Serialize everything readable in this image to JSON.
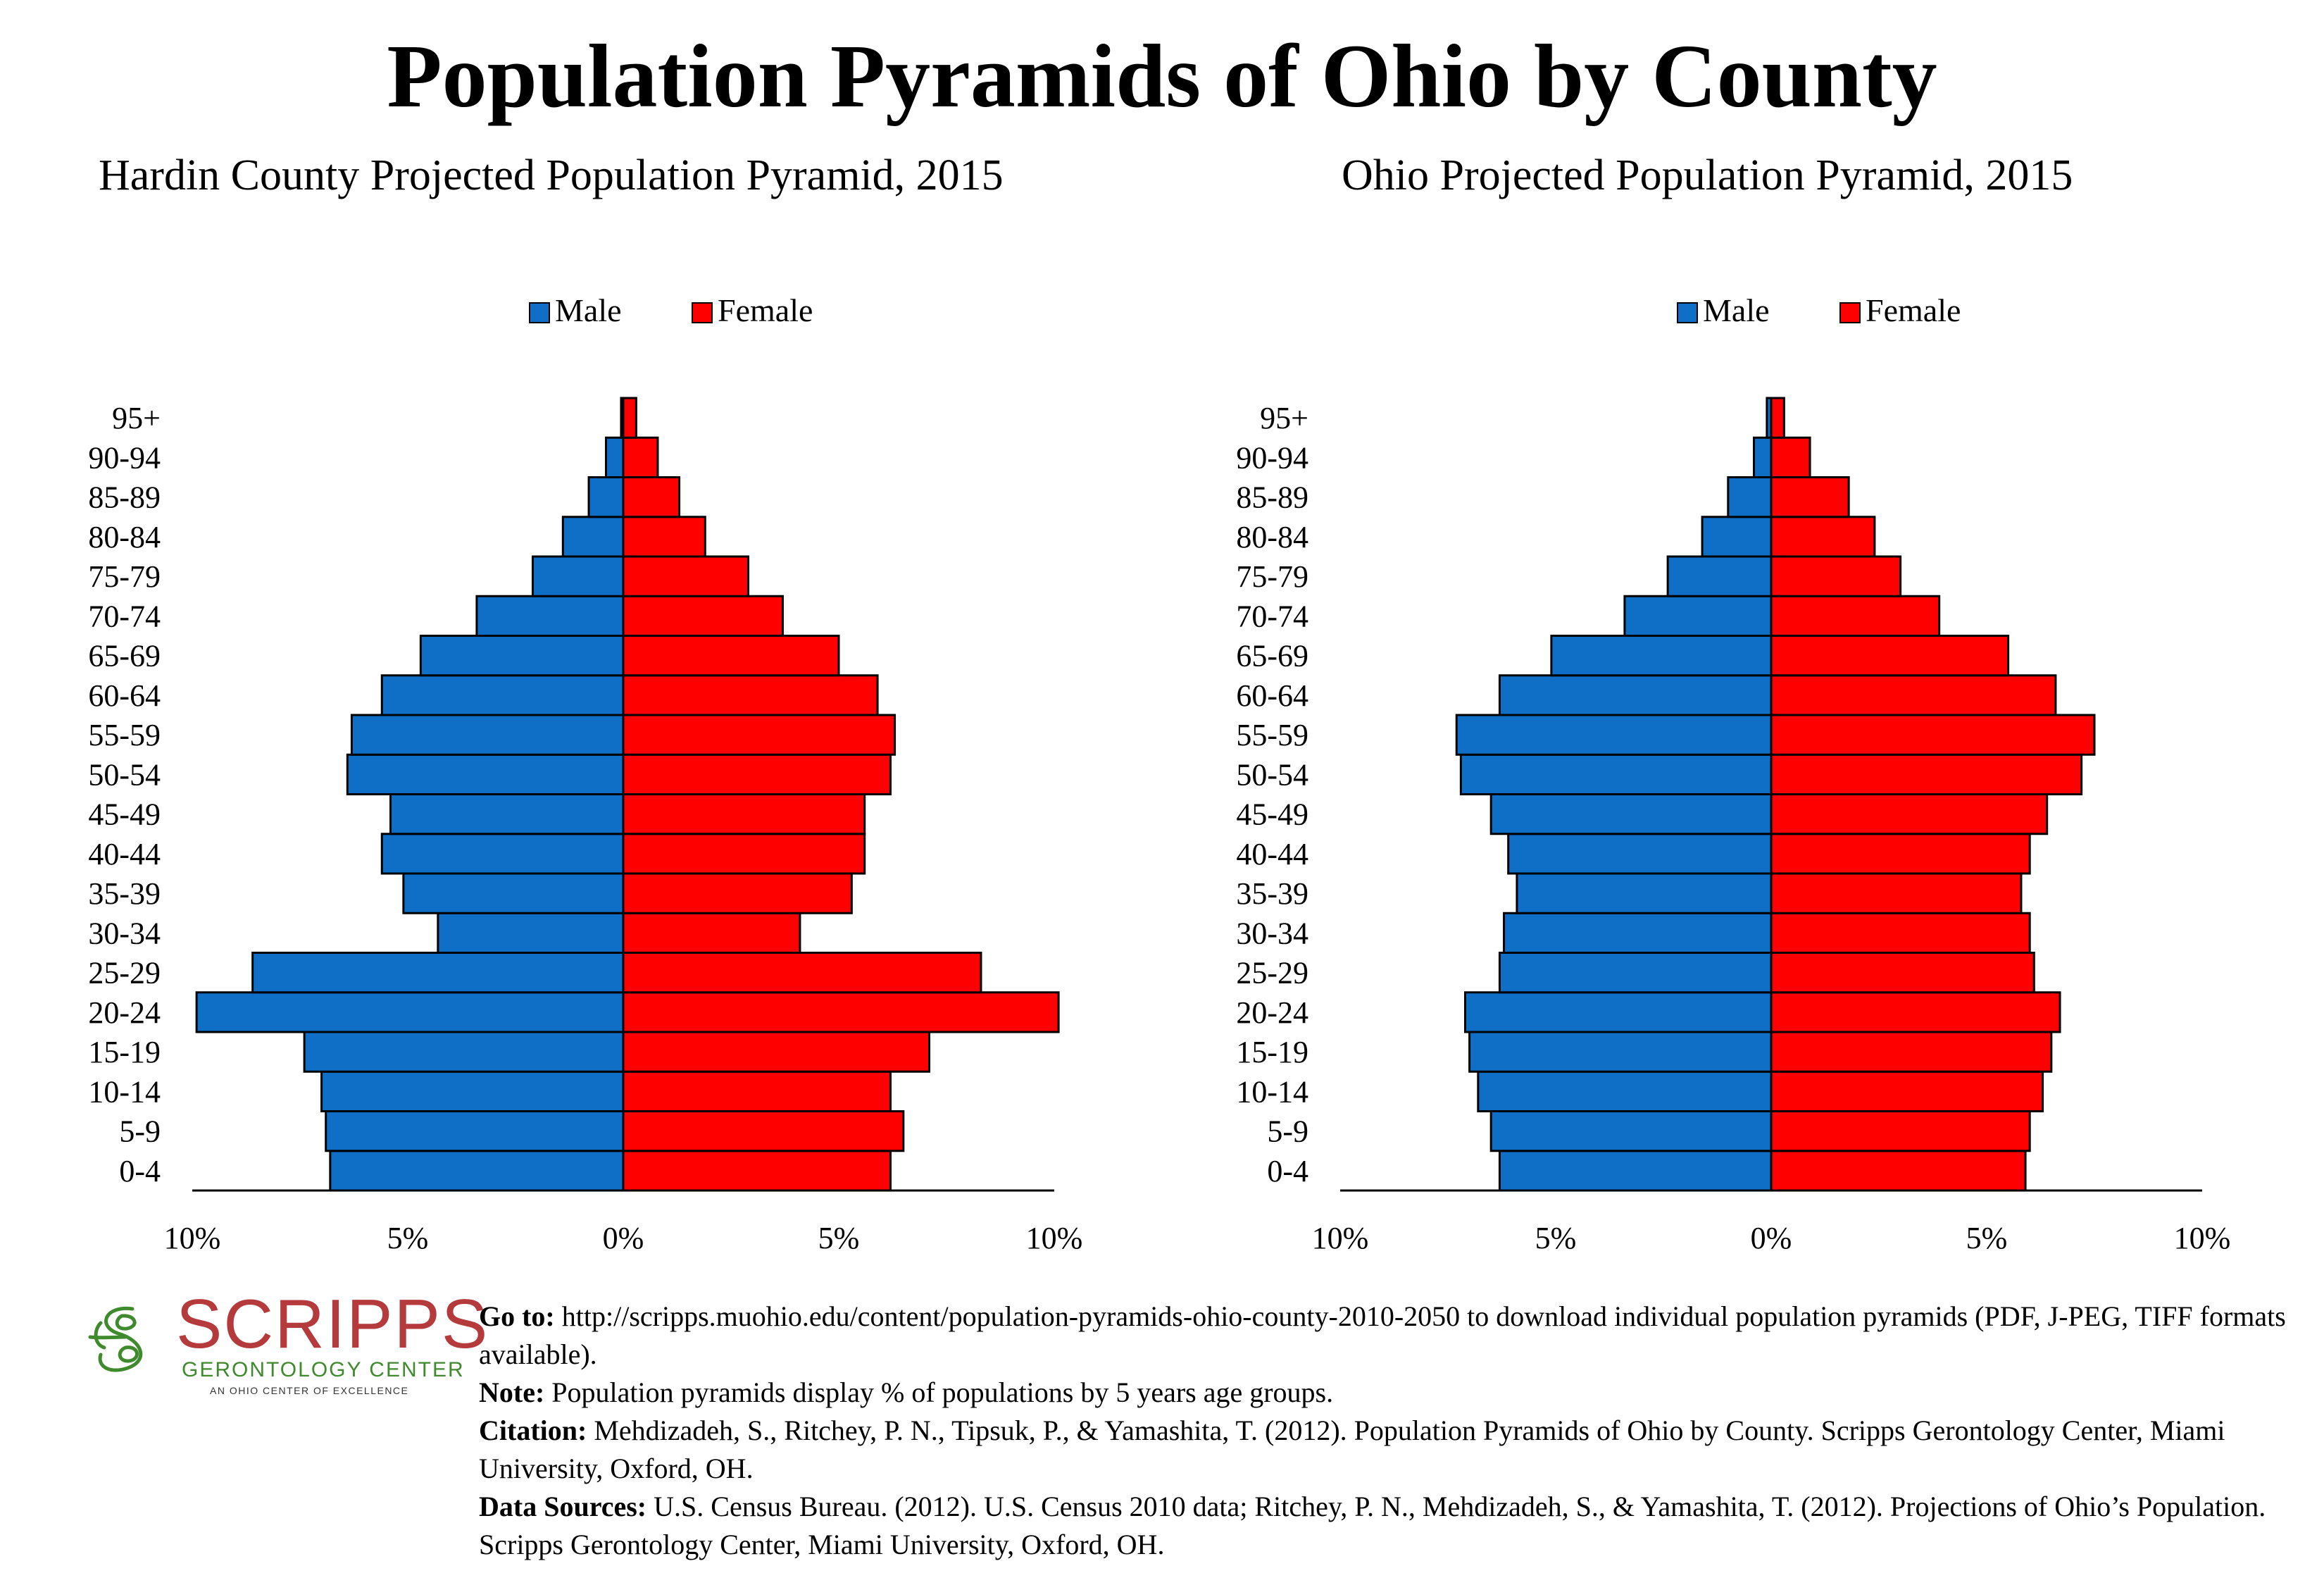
{
  "title": "Population Pyramids of Ohio by County",
  "colors": {
    "male": "#0f6fc6",
    "female": "#ff0000",
    "logo_red": "#b43a3c",
    "logo_green": "#3e8a2c"
  },
  "chart_data": [
    {
      "type": "bar",
      "title": "Hardin County Projected Population Pyramid, 2015",
      "legend": [
        "Male",
        "Female"
      ],
      "legend_placement": "top-center",
      "categories": [
        "0-4",
        "5-9",
        "10-14",
        "15-19",
        "20-24",
        "25-29",
        "30-34",
        "35-39",
        "40-44",
        "45-49",
        "50-54",
        "55-59",
        "60-64",
        "65-69",
        "70-74",
        "75-79",
        "80-84",
        "85-89",
        "90-94",
        "95+"
      ],
      "series": [
        {
          "name": "Male",
          "values": [
            6.8,
            6.9,
            7.0,
            7.4,
            9.9,
            8.6,
            4.3,
            5.1,
            5.6,
            5.4,
            6.4,
            6.3,
            5.6,
            4.7,
            3.4,
            2.1,
            1.4,
            0.8,
            0.4,
            0.05
          ]
        },
        {
          "name": "Female",
          "values": [
            6.2,
            6.5,
            6.2,
            7.1,
            10.1,
            8.3,
            4.1,
            5.3,
            5.6,
            5.6,
            6.2,
            6.3,
            5.9,
            5.0,
            3.7,
            2.9,
            1.9,
            1.3,
            0.8,
            0.3
          ]
        }
      ],
      "xlim": [
        -10,
        10
      ],
      "xticks": [
        "10%",
        "5%",
        "0%",
        "5%",
        "10%"
      ],
      "grid": false
    },
    {
      "type": "bar",
      "title": "Ohio Projected Population Pyramid, 2015",
      "legend": [
        "Male",
        "Female"
      ],
      "legend_placement": "top-center",
      "categories": [
        "0-4",
        "5-9",
        "10-14",
        "15-19",
        "20-24",
        "25-29",
        "30-34",
        "35-39",
        "40-44",
        "45-49",
        "50-54",
        "55-59",
        "60-64",
        "65-69",
        "70-74",
        "75-79",
        "80-84",
        "85-89",
        "90-94",
        "95+"
      ],
      "series": [
        {
          "name": "Male",
          "values": [
            6.3,
            6.5,
            6.8,
            7.0,
            7.1,
            6.3,
            6.2,
            5.9,
            6.1,
            6.5,
            7.2,
            7.3,
            6.3,
            5.1,
            3.4,
            2.4,
            1.6,
            1.0,
            0.4,
            0.1
          ]
        },
        {
          "name": "Female",
          "values": [
            5.9,
            6.0,
            6.3,
            6.5,
            6.7,
            6.1,
            6.0,
            5.8,
            6.0,
            6.4,
            7.2,
            7.5,
            6.6,
            5.5,
            3.9,
            3.0,
            2.4,
            1.8,
            0.9,
            0.3
          ]
        }
      ],
      "xlim": [
        -10,
        10
      ],
      "xticks": [
        "10%",
        "5%",
        "0%",
        "5%",
        "10%"
      ],
      "grid": false
    }
  ],
  "logo": {
    "name": "SCRIPPS",
    "subtitle": "GERONTOLOGY CENTER",
    "tagline": "AN OHIO CENTER OF EXCELLENCE"
  },
  "footer": [
    {
      "label": "Go to:",
      "text": " http://scripps.muohio.edu/content/population-pyramids-ohio-county-2010-2050 to download individual population pyramids (PDF, J-PEG, TIFF formats available)."
    },
    {
      "label": "Note:",
      "text": " Population pyramids display % of populations by 5 years age groups."
    },
    {
      "label": "Citation:",
      "text": " Mehdizadeh, S., Ritchey, P. N., Tipsuk, P., & Yamashita, T. (2012). Population Pyramids of Ohio by County. Scripps Gerontology Center, Miami University, Oxford, OH."
    },
    {
      "label": "Data Sources:",
      "text": " U.S. Census Bureau. (2012). U.S. Census 2010 data; Ritchey, P. N., Mehdizadeh, S., & Yamashita, T. (2012). Projections of Ohio’s Population. Scripps Gerontology Center, Miami University, Oxford, OH."
    }
  ]
}
